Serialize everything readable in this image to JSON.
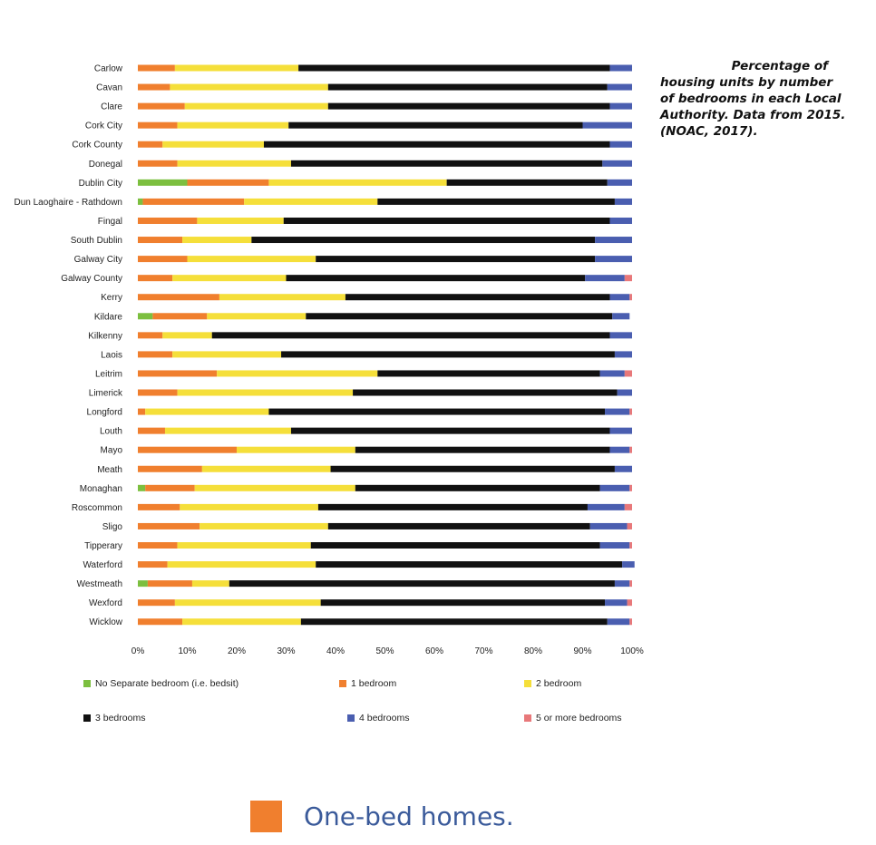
{
  "title_lines": [
    "Percentage of",
    "housing units by number",
    "of bedrooms in each Local",
    "Authority. Data from 2015.",
    "(NOAC, 2017)."
  ],
  "caption": {
    "text": "One-bed homes.",
    "swatch_color": "#f07f2e"
  },
  "chart_data": {
    "type": "bar",
    "orientation": "horizontal",
    "stacked": true,
    "percent_stacked": true,
    "categories": [
      "Carlow",
      "Cavan",
      "Clare",
      "Cork City",
      "Cork County",
      "Donegal",
      "Dublin City",
      "Dun Laoghaire - Rathdown",
      "Fingal",
      "South Dublin",
      "Galway City",
      "Galway County",
      "Kerry",
      "Kildare",
      "Kilkenny",
      "Laois",
      "Leitrim",
      "Limerick",
      "Longford",
      "Louth",
      "Mayo",
      "Meath",
      "Monaghan",
      "Roscommon",
      "Sligo",
      "Tipperary",
      "Waterford",
      "Westmeath",
      "Wexford",
      "Wicklow"
    ],
    "series": [
      {
        "name": "No Separate bedroom (i.e. bedsit)",
        "color": "#7cbf3f",
        "values": [
          0,
          0,
          0,
          0,
          0,
          0,
          10,
          1,
          0,
          0,
          0,
          0,
          0,
          3,
          0,
          0,
          0,
          0,
          0,
          0,
          0,
          0,
          1.5,
          0,
          0,
          0,
          0,
          2,
          0,
          0
        ]
      },
      {
        "name": "1 bedroom",
        "color": "#f07f2e",
        "values": [
          7.5,
          6.5,
          9.5,
          8,
          5,
          8,
          16.5,
          20.5,
          12,
          9,
          10,
          7,
          16.5,
          11,
          5,
          7,
          16,
          8,
          1.5,
          5.5,
          20,
          13,
          10,
          8.5,
          12.5,
          8,
          6,
          9,
          7.5,
          9
        ]
      },
      {
        "name": "2 bedroom",
        "color": "#f5df3a",
        "values": [
          25,
          32,
          29,
          22.5,
          20.5,
          23,
          36,
          27,
          17.5,
          14,
          26,
          23,
          25.5,
          20,
          10,
          22,
          32.5,
          35.5,
          25,
          25.5,
          24,
          26,
          32.5,
          28,
          26,
          27,
          30,
          7.5,
          29.5,
          24
        ]
      },
      {
        "name": "3 bedrooms",
        "color": "#111111",
        "values": [
          63,
          56.5,
          57,
          59.5,
          70,
          63,
          32.5,
          48,
          66,
          69.5,
          56.5,
          60.5,
          53.5,
          62,
          80.5,
          67.5,
          45,
          53.5,
          68,
          64.5,
          51.5,
          57.5,
          49.5,
          54.5,
          53,
          58.5,
          62,
          78,
          57.5,
          62
        ]
      },
      {
        "name": "4 bedrooms",
        "color": "#4a5eb0",
        "values": [
          4.5,
          5,
          4.5,
          10,
          4.5,
          6,
          5,
          3.5,
          4.5,
          7.5,
          7.5,
          8,
          4,
          3.5,
          4.5,
          3.5,
          5,
          3,
          5,
          4.5,
          4,
          3.5,
          6,
          7.5,
          7.5,
          6,
          2.5,
          3,
          4.5,
          4.5
        ]
      },
      {
        "name": "5 or more bedrooms",
        "color": "#e8787a",
        "values": [
          0,
          0,
          0,
          0,
          0,
          0,
          0,
          0,
          0,
          0,
          0,
          1.5,
          0.5,
          0,
          0,
          0,
          1.5,
          0,
          0.5,
          0,
          0.5,
          0,
          0.5,
          1.5,
          1,
          0.5,
          0,
          0.5,
          1,
          0.5
        ]
      }
    ],
    "xlim": [
      0,
      100
    ],
    "x_ticks": [
      "0%",
      "10%",
      "20%",
      "30%",
      "40%",
      "50%",
      "60%",
      "70%",
      "80%",
      "90%",
      "100%"
    ],
    "grid": false,
    "legend_position": "bottom"
  }
}
